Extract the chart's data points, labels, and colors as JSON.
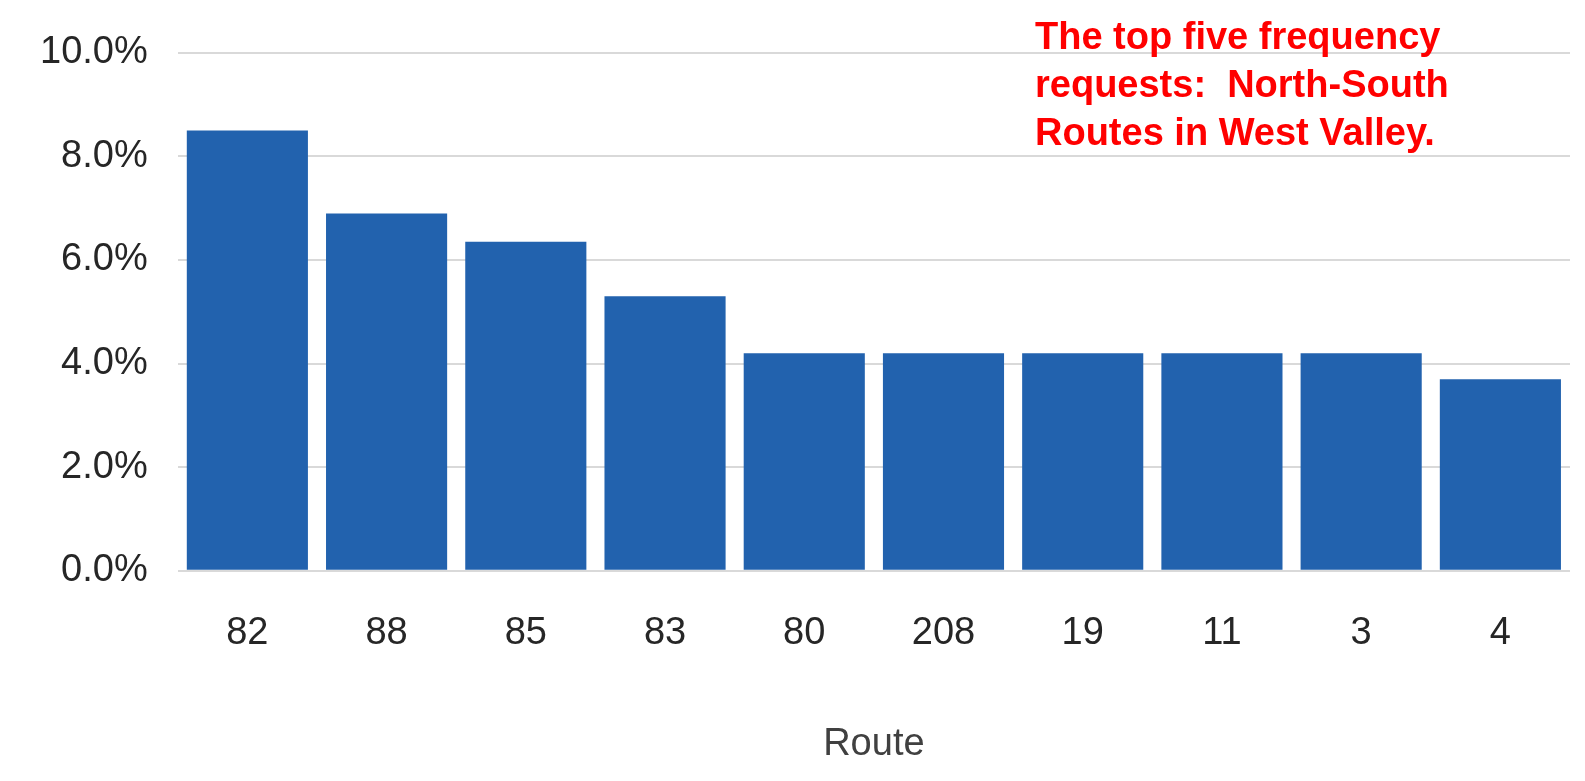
{
  "chart_data": {
    "type": "bar",
    "xlabel": "Route",
    "categories": [
      "82",
      "88",
      "85",
      "83",
      "80",
      "208",
      "19",
      "11",
      "3",
      "4"
    ],
    "values": [
      8.5,
      6.9,
      6.35,
      5.3,
      4.2,
      4.2,
      4.2,
      4.2,
      4.2,
      3.7
    ],
    "color": "#2262ae",
    "ylim": [
      0,
      10
    ],
    "yticks": [
      {
        "value": 0,
        "label": "0.0%"
      },
      {
        "value": 2,
        "label": "2.0%"
      },
      {
        "value": 4,
        "label": "4.0%"
      },
      {
        "value": 6,
        "label": "6.0%"
      },
      {
        "value": 8,
        "label": "8.0%"
      },
      {
        "value": 10,
        "label": "10.0%"
      }
    ],
    "grid": "y",
    "legend": false,
    "annotations": [
      "The top five frequency requests:  North-South Routes in West Valley."
    ]
  }
}
